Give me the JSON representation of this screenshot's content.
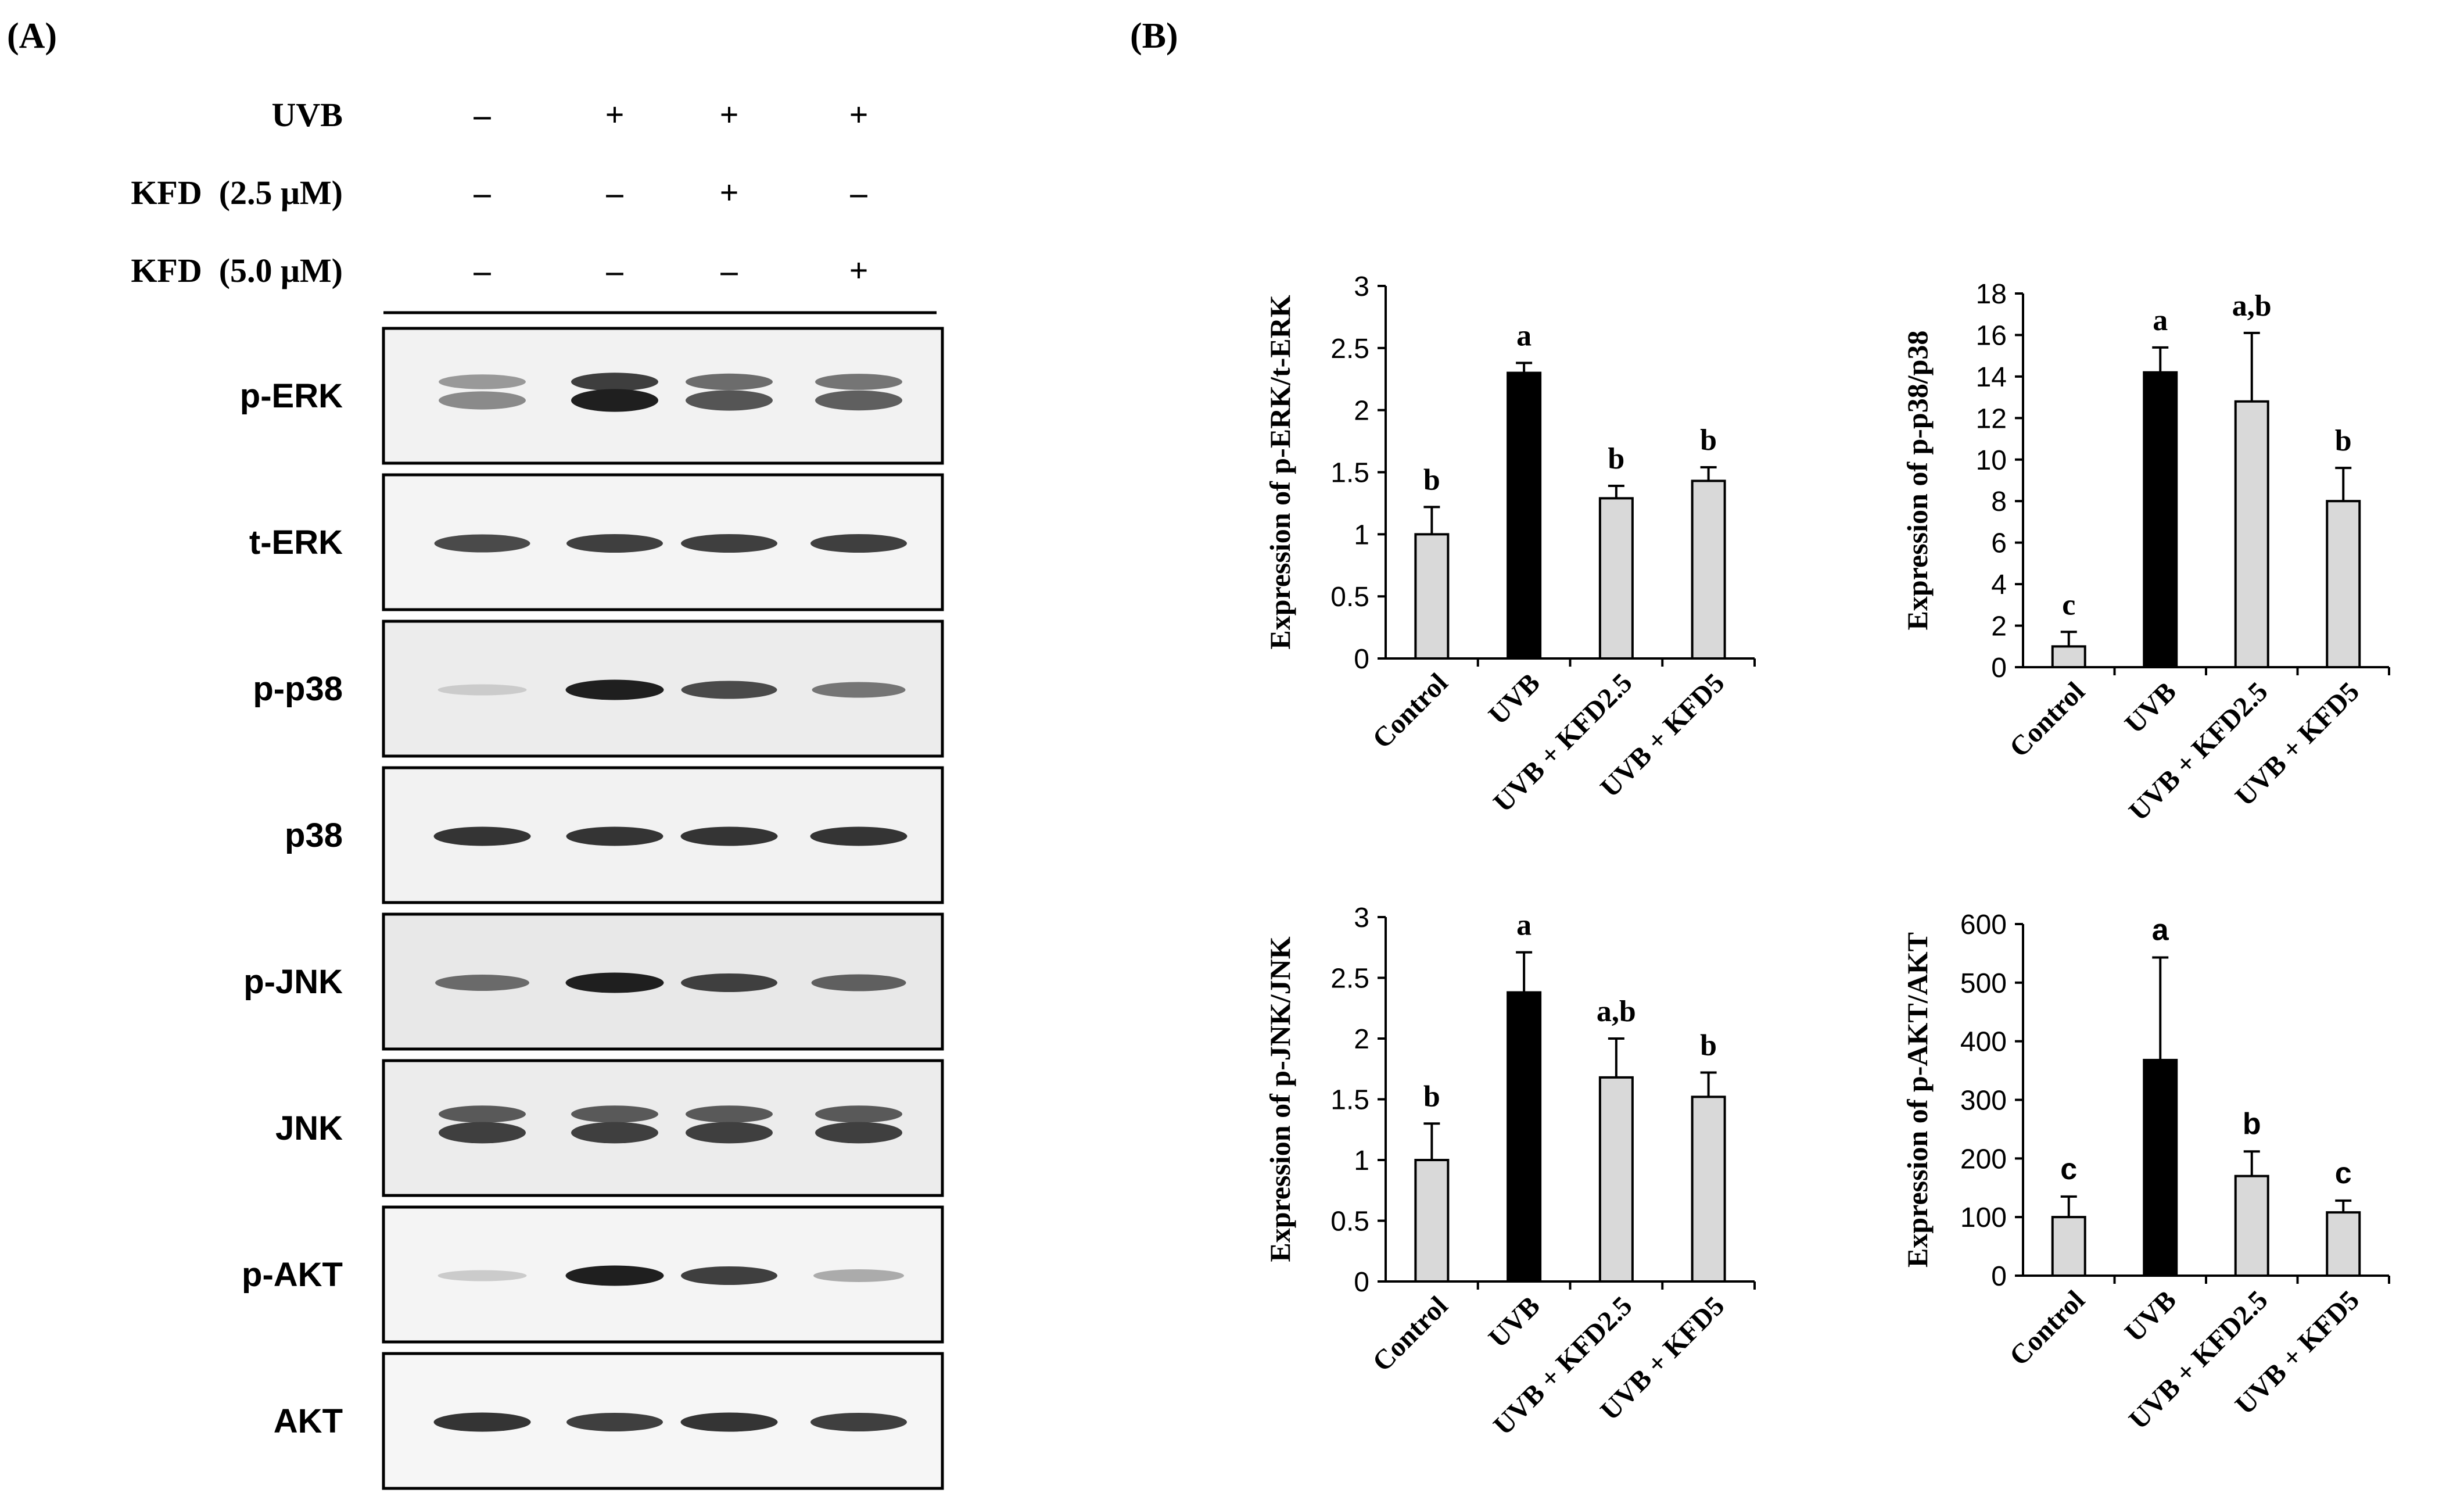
{
  "panel_labels": {
    "a": "(A)",
    "b": "(B)"
  },
  "western_blot": {
    "treatments": [
      {
        "label": "UVB",
        "signs": [
          "–",
          "+",
          "+",
          "+"
        ]
      },
      {
        "label": "KFD  (2.5 μM)",
        "signs": [
          "–",
          "–",
          "+",
          "–"
        ]
      },
      {
        "label": "KFD  (5.0 μM)",
        "signs": [
          "–",
          "–",
          "–",
          "+"
        ]
      }
    ],
    "blots": [
      {
        "label": "p-ERK",
        "bands": 2,
        "intensity": [
          0.45,
          0.95,
          0.7,
          0.65
        ],
        "bg": "#f2f2f2"
      },
      {
        "label": "t-ERK",
        "bands": 1,
        "intensity": [
          0.75,
          0.8,
          0.8,
          0.8
        ],
        "bg": "#f4f4f4"
      },
      {
        "label": "p-p38",
        "bands": 1,
        "intensity": [
          0.15,
          0.95,
          0.75,
          0.55
        ],
        "bg": "#ececec"
      },
      {
        "label": "p38",
        "bands": 1,
        "intensity": [
          0.85,
          0.85,
          0.85,
          0.85
        ],
        "bg": "#f2f2f2"
      },
      {
        "label": "p-JNK",
        "bands": 1,
        "intensity": [
          0.6,
          0.95,
          0.8,
          0.65
        ],
        "bg": "#e8e8e8"
      },
      {
        "label": "JNK",
        "bands": 2,
        "intensity": [
          0.8,
          0.8,
          0.8,
          0.8
        ],
        "bg": "#ececec"
      },
      {
        "label": "p-AKT",
        "bands": 1,
        "intensity": [
          0.15,
          0.95,
          0.8,
          0.3
        ],
        "bg": "#f4f4f4"
      },
      {
        "label": "AKT",
        "bands": 1,
        "intensity": [
          0.85,
          0.8,
          0.85,
          0.8
        ],
        "bg": "#f6f6f6"
      }
    ]
  },
  "chart_data": [
    {
      "type": "bar",
      "ylabel": "Expression of p-ERK/t-ERK",
      "categories": [
        "Control",
        "UVB",
        "UVB + KFD2.5",
        "UVB + KFD5"
      ],
      "values": [
        1.0,
        2.3,
        1.29,
        1.43
      ],
      "errors": [
        0.22,
        0.08,
        0.1,
        0.11
      ],
      "letters": [
        "b",
        "a",
        "b",
        "b"
      ],
      "ylim": [
        0,
        3
      ],
      "ticks": [
        "0",
        "0.5",
        "1",
        "1.5",
        "2",
        "2.5",
        "3"
      ],
      "tick_values": [
        0,
        0.5,
        1,
        1.5,
        2,
        2.5,
        3
      ],
      "bar_colors": [
        "#d9d9d9",
        "#000000",
        "#d9d9d9",
        "#d9d9d9"
      ]
    },
    {
      "type": "bar",
      "ylabel": "Expression of p-p38/p38",
      "categories": [
        "Control",
        "UVB",
        "UVB + KFD2.5",
        "UVB + KFD5"
      ],
      "values": [
        1.0,
        14.2,
        12.8,
        8.0
      ],
      "errors": [
        0.7,
        1.2,
        3.3,
        1.6
      ],
      "letters": [
        "c",
        "a",
        "a,b",
        "b"
      ],
      "ylim": [
        0,
        18
      ],
      "ticks": [
        "0",
        "2",
        "4",
        "6",
        "8",
        "10",
        "12",
        "14",
        "16",
        "18"
      ],
      "tick_values": [
        0,
        2,
        4,
        6,
        8,
        10,
        12,
        14,
        16,
        18
      ],
      "bar_colors": [
        "#d9d9d9",
        "#000000",
        "#d9d9d9",
        "#d9d9d9"
      ]
    },
    {
      "type": "bar",
      "ylabel": "Expression of p-JNK/JNK",
      "categories": [
        "Control",
        "UVB",
        "UVB + KFD2.5",
        "UVB + KFD5"
      ],
      "values": [
        1.0,
        2.38,
        1.68,
        1.52
      ],
      "errors": [
        0.3,
        0.33,
        0.32,
        0.2
      ],
      "letters": [
        "b",
        "a",
        "a,b",
        "b"
      ],
      "ylim": [
        0,
        3
      ],
      "ticks": [
        "0",
        "0.5",
        "1",
        "1.5",
        "2",
        "2.5",
        "3"
      ],
      "tick_values": [
        0,
        0.5,
        1,
        1.5,
        2,
        2.5,
        3
      ],
      "bar_colors": [
        "#d9d9d9",
        "#000000",
        "#d9d9d9",
        "#d9d9d9"
      ]
    },
    {
      "type": "bar",
      "ylabel": "Expression of p-AKT/AKT",
      "categories": [
        "Control",
        "UVB",
        "UVB + KFD2.5",
        "UVB + KFD5"
      ],
      "values": [
        100,
        368,
        170,
        108
      ],
      "errors": [
        35,
        175,
        42,
        20
      ],
      "letters": [
        "c",
        "a",
        "b",
        "c"
      ],
      "ylim": [
        0,
        600
      ],
      "ticks": [
        "0",
        "100",
        "200",
        "300",
        "400",
        "500",
        "600"
      ],
      "tick_values": [
        0,
        100,
        200,
        300,
        400,
        500,
        600
      ],
      "bar_colors": [
        "#d9d9d9",
        "#000000",
        "#d9d9d9",
        "#d9d9d9"
      ]
    }
  ]
}
